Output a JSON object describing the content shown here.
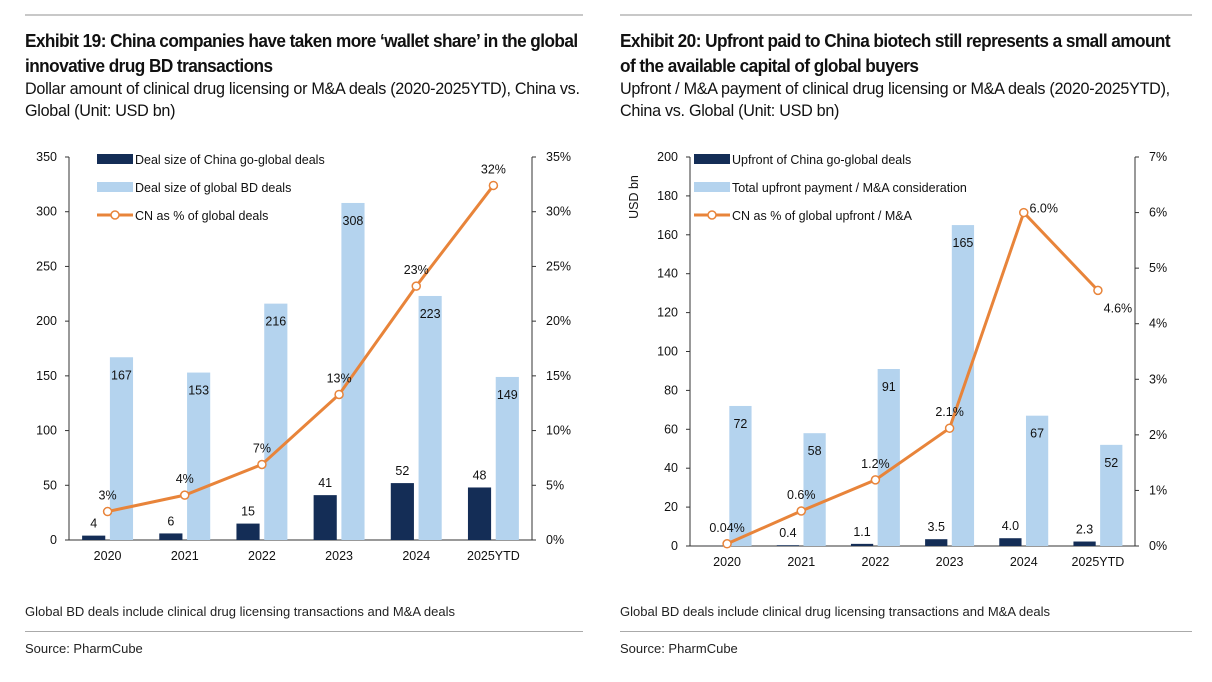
{
  "colors": {
    "china": "#142d56",
    "global": "#b4d3ee",
    "line": "#e8843a"
  },
  "footnote": "Global BD deals include clinical drug licensing transactions and M&A deals",
  "source": "Source: PharmCube",
  "chart_data": [
    {
      "type": "bar+line",
      "title": "Exhibit 19: China companies have taken more ‘wallet share’ in the global innovative drug BD transactions",
      "subtitle": "Dollar amount of clinical drug licensing or M&A deals (2020-2025YTD), China vs. Global (Unit: USD bn)",
      "ylabel": "",
      "categories": [
        "2020",
        "2021",
        "2022",
        "2023",
        "2024",
        "2025YTD"
      ],
      "ylim": [
        0,
        350
      ],
      "yticks": [
        "0",
        "50",
        "100",
        "150",
        "200",
        "250",
        "300",
        "350"
      ],
      "y2lim": [
        0,
        35
      ],
      "y2ticks": [
        "0%",
        "5%",
        "10%",
        "15%",
        "20%",
        "25%",
        "30%",
        "35%"
      ],
      "legend": "top-left",
      "series": [
        {
          "name": "Deal size of China go-global deals",
          "kind": "bar",
          "values": [
            4,
            6,
            15,
            41,
            52,
            48
          ],
          "labels": [
            "4",
            "6",
            "15",
            "41",
            "52",
            "48"
          ]
        },
        {
          "name": "Deal size of global BD deals",
          "kind": "bar",
          "values": [
            167,
            153,
            216,
            308,
            223,
            149
          ],
          "labels": [
            "167",
            "153",
            "216",
            "308",
            "223",
            "149"
          ]
        },
        {
          "name": "CN as % of global deals",
          "kind": "line",
          "axis": "right",
          "values": [
            2.6,
            4.1,
            6.9,
            13.3,
            23.2,
            32.4
          ],
          "labels": [
            "3%",
            "4%",
            "7%",
            "13%",
            "23%",
            "32%"
          ]
        }
      ]
    },
    {
      "type": "bar+line",
      "title": "Exhibit 20: Upfront paid to China biotech still represents a small amount of the available capital of global buyers",
      "subtitle": "Upfront / M&A payment of clinical drug licensing or M&A deals (2020-2025YTD), China vs. Global (Unit: USD bn)",
      "ylabel": "USD bn",
      "categories": [
        "2020",
        "2021",
        "2022",
        "2023",
        "2024",
        "2025YTD"
      ],
      "ylim": [
        0,
        200
      ],
      "yticks": [
        "0",
        "20",
        "40",
        "60",
        "80",
        "100",
        "120",
        "140",
        "160",
        "180",
        "200"
      ],
      "y2lim": [
        0,
        7
      ],
      "y2ticks": [
        "0%",
        "1%",
        "2%",
        "3%",
        "4%",
        "5%",
        "6%",
        "7%"
      ],
      "legend": "top-left",
      "series": [
        {
          "name": "Upfront of China go-global deals",
          "kind": "bar",
          "values": [
            0.03,
            0.4,
            1.1,
            3.5,
            4.0,
            2.3
          ],
          "labels": [
            "",
            "0.4",
            "1.1",
            "3.5",
            "4.0",
            "2.3"
          ]
        },
        {
          "name": "Total upfront payment / M&A consideration",
          "kind": "bar",
          "values": [
            72,
            58,
            91,
            165,
            67,
            52
          ],
          "labels": [
            "72",
            "58",
            "91",
            "165",
            "67",
            "52"
          ]
        },
        {
          "name": "CN as % of global upfront / M&A",
          "kind": "line",
          "axis": "right",
          "values": [
            0.04,
            0.63,
            1.19,
            2.12,
            6.0,
            4.6
          ],
          "labels": [
            "0.04%",
            "0.6%",
            "1.2%",
            "2.1%",
            "6.0%",
            "4.6%"
          ]
        }
      ]
    }
  ]
}
